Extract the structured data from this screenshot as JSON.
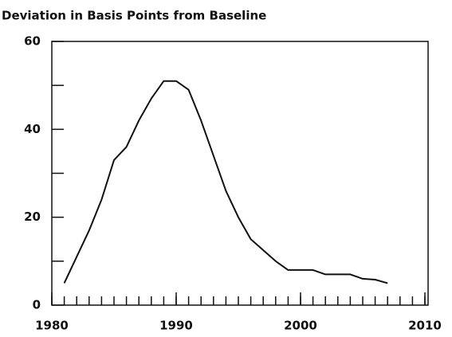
{
  "chart_data": {
    "type": "line",
    "title": "Deviation in Basis Points from Baseline",
    "x": [
      1981,
      1982,
      1983,
      1984,
      1985,
      1986,
      1987,
      1988,
      1989,
      1990,
      1991,
      1992,
      1993,
      1994,
      1995,
      1996,
      1997,
      1998,
      1999,
      2000,
      2001,
      2002,
      2003,
      2004,
      2005,
      2006,
      2007
    ],
    "values": [
      5,
      11,
      17,
      24,
      33,
      36,
      42,
      47,
      51,
      51,
      49,
      42,
      34,
      26,
      20,
      15,
      12.5,
      10,
      8,
      8,
      8,
      7,
      7,
      7,
      6,
      5.8,
      5
    ],
    "color": "#111111",
    "xlim": [
      1980,
      2010
    ],
    "xticks": [
      1980,
      1990,
      2000,
      2010
    ],
    "xminor_step": 1,
    "ylim": [
      0,
      60
    ],
    "yticks": [
      0,
      20,
      40,
      60
    ],
    "yminor": [
      10,
      30,
      50
    ],
    "grid": false
  }
}
